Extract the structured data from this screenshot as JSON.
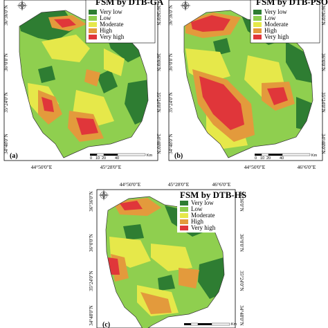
{
  "colors": {
    "very_low": "#2e7d32",
    "low": "#8fcf4f",
    "moderate": "#e6e84a",
    "high": "#e39a3c",
    "very_high": "#e0363a"
  },
  "icons": {
    "north_arrow": "compass-rose-icon"
  },
  "legend": [
    "Very low",
    "Low",
    "Moderate",
    "High",
    "Very high"
  ],
  "panels": [
    {
      "label": "(a)",
      "title": "FSM by DTB-GA",
      "lat_left": [
        "36°36'0\"N",
        "36°0'0\"N",
        "35°24'0\"N",
        "34°48'0\"N"
      ],
      "lat_right": [
        "36°36'0\"N",
        "36°0'0\"N",
        "35°24'0\"N",
        "34°48'0\"N"
      ],
      "lon": [
        "44°50'0\"E",
        "45°28'0\"E"
      ],
      "scale": [
        "0",
        "10",
        "20",
        "40",
        "Km"
      ]
    },
    {
      "label": "(b)",
      "title": "FSM by DTB-PSO",
      "lat_left": [
        "36°36'0\"N",
        "36°0'0\"N",
        "35°24'0\"N",
        "34°48'0\"N"
      ],
      "lat_right": [
        "36°36'0\"N",
        "36°0'0\"N",
        "35°24'0\"N",
        "34°48'0\"N"
      ],
      "lon": [
        "44°50'0\"E",
        "46°6'0\"E"
      ],
      "scale": [
        "0",
        "10",
        "20",
        "40",
        "Km"
      ]
    },
    {
      "label": "(c)",
      "title": "FSM by DTB-HS",
      "lat_left": [
        "36°36'0\"N",
        "36°0'0\"N",
        "35°24'0\"N",
        "34°48'0\"N"
      ],
      "lat_right": [
        "36°36'0\"N",
        "36°0'0\"N",
        "35°24'0\"N",
        "34°48'0\"N"
      ],
      "lon_top": [
        "44°50'0\"E",
        "45°28'0\"E",
        "46°6'0\"E"
      ],
      "scale": [
        "Km"
      ]
    }
  ]
}
